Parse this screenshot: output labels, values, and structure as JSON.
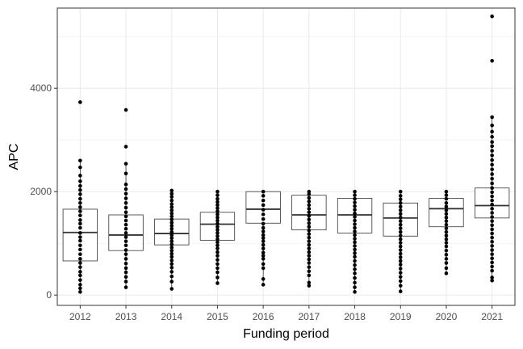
{
  "chart_data": {
    "type": "boxplot",
    "xlabel": "Funding period",
    "ylabel": "APC",
    "ylim": [
      -200,
      5550
    ],
    "yticks": [
      0,
      2000,
      4000
    ],
    "ytick_labels": [
      "0",
      "2000",
      "4000"
    ],
    "grid": true,
    "legend": "none",
    "colors": {
      "panel_border": "#333333",
      "grid": "#ebebeb",
      "points": "#000000",
      "box": "#333333"
    },
    "categories": [
      "2012",
      "2013",
      "2014",
      "2015",
      "2016",
      "2017",
      "2018",
      "2019",
      "2020",
      "2021"
    ],
    "boxes": [
      {
        "label": "2012",
        "whisker_low": 60,
        "q1": 660,
        "median": 1210,
        "q3": 1660,
        "whisker_high": 2600
      },
      {
        "label": "2013",
        "whisker_low": 150,
        "q1": 860,
        "median": 1160,
        "q3": 1550,
        "whisker_high": 2540
      },
      {
        "label": "2014",
        "whisker_low": 120,
        "q1": 970,
        "median": 1190,
        "q3": 1470,
        "whisker_high": 2020
      },
      {
        "label": "2015",
        "whisker_low": 230,
        "q1": 1060,
        "median": 1370,
        "q3": 1600,
        "whisker_high": 2000
      },
      {
        "label": "2016",
        "whisker_low": 200,
        "q1": 1390,
        "median": 1660,
        "q3": 2000,
        "whisker_high": 2000
      },
      {
        "label": "2017",
        "whisker_low": 180,
        "q1": 1260,
        "median": 1550,
        "q3": 1930,
        "whisker_high": 2000
      },
      {
        "label": "2018",
        "whisker_low": 60,
        "q1": 1200,
        "median": 1550,
        "q3": 1870,
        "whisker_high": 2000
      },
      {
        "label": "2019",
        "whisker_low": 70,
        "q1": 1140,
        "median": 1490,
        "q3": 1780,
        "whisker_high": 2000
      },
      {
        "label": "2020",
        "whisker_low": 420,
        "q1": 1320,
        "median": 1670,
        "q3": 1870,
        "whisker_high": 2000
      },
      {
        "label": "2021",
        "whisker_low": 280,
        "q1": 1490,
        "median": 1730,
        "q3": 2070,
        "whisker_high": 3440
      }
    ],
    "points": {
      "2012": [
        60,
        130,
        200,
        290,
        380,
        450,
        540,
        620,
        700,
        790,
        880,
        960,
        1050,
        1120,
        1200,
        1300,
        1380,
        1450,
        1540,
        1620,
        1700,
        1780,
        1860,
        1950,
        2030,
        2110,
        2200,
        2310,
        2470,
        2600,
        3730
      ],
      "2013": [
        150,
        260,
        350,
        440,
        520,
        610,
        700,
        790,
        870,
        960,
        1040,
        1120,
        1200,
        1280,
        1360,
        1440,
        1520,
        1600,
        1690,
        1780,
        1870,
        1960,
        2050,
        2140,
        2350,
        2540,
        2870,
        3580
      ],
      "2014": [
        120,
        260,
        360,
        450,
        530,
        600,
        670,
        740,
        800,
        860,
        920,
        980,
        1040,
        1100,
        1160,
        1220,
        1280,
        1340,
        1400,
        1460,
        1520,
        1580,
        1640,
        1700,
        1760,
        1830,
        1900,
        1960,
        2020
      ],
      "2015": [
        230,
        340,
        440,
        520,
        600,
        680,
        760,
        830,
        900,
        960,
        1020,
        1080,
        1140,
        1200,
        1260,
        1320,
        1380,
        1440,
        1500,
        1560,
        1620,
        1680,
        1740,
        1800,
        1860,
        1930,
        2000
      ],
      "2016": [
        200,
        310,
        520,
        600,
        700,
        760,
        820,
        900,
        970,
        1040,
        1100,
        1160,
        1230,
        1300,
        1380,
        1470,
        1560,
        1650,
        1740,
        1830,
        1920,
        2000
      ],
      "2017": [
        180,
        240,
        380,
        460,
        540,
        620,
        690,
        760,
        830,
        900,
        970,
        1040,
        1110,
        1180,
        1250,
        1320,
        1390,
        1460,
        1530,
        1600,
        1670,
        1740,
        1810,
        1880,
        1950,
        2000
      ],
      "2018": [
        60,
        150,
        240,
        330,
        420,
        500,
        580,
        660,
        740,
        810,
        880,
        950,
        1020,
        1090,
        1160,
        1230,
        1300,
        1370,
        1440,
        1510,
        1580,
        1650,
        1720,
        1790,
        1860,
        1930,
        2000
      ],
      "2019": [
        70,
        180,
        270,
        350,
        430,
        510,
        590,
        660,
        730,
        800,
        870,
        940,
        1010,
        1080,
        1150,
        1220,
        1290,
        1360,
        1430,
        1500,
        1570,
        1640,
        1710,
        1780,
        1850,
        1920,
        2000
      ],
      "2020": [
        420,
        520,
        620,
        700,
        780,
        860,
        940,
        1010,
        1080,
        1150,
        1220,
        1290,
        1360,
        1430,
        1500,
        1570,
        1640,
        1710,
        1780,
        1860,
        1930,
        2000
      ],
      "2021": [
        280,
        340,
        470,
        550,
        630,
        710,
        790,
        870,
        950,
        1030,
        1110,
        1190,
        1270,
        1350,
        1430,
        1510,
        1590,
        1670,
        1750,
        1830,
        1910,
        1990,
        2070,
        2160,
        2250,
        2340,
        2430,
        2520,
        2610,
        2700,
        2790,
        2880,
        2960,
        3060,
        3160,
        3280,
        3440,
        4530,
        5390
      ]
    }
  }
}
